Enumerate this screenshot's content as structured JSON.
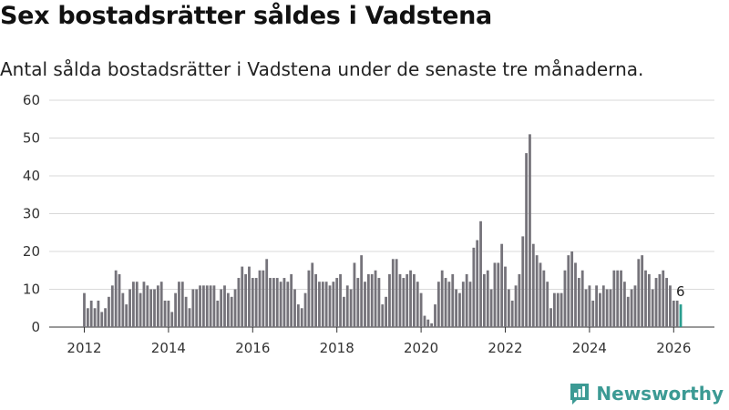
{
  "title": "Sex bostadsrätter såldes i Vadstena",
  "subtitle": "Antal sålda bostadsrätter i Vadstena under de senaste tre månaderna.",
  "brand": {
    "name": "Newsworthy",
    "icon": "newsworthy-logo-icon"
  },
  "colors": {
    "bar": "#75737a",
    "highlight": "#2a9d8f",
    "grid": "#d9d9d9",
    "axis": "#333333",
    "brand": "#3c9a94"
  },
  "chart_data": {
    "type": "bar",
    "title": "Sex bostadsrätter såldes i Vadstena",
    "xlabel": "",
    "ylabel": "",
    "ylim": [
      0,
      60
    ],
    "yticks": [
      0,
      10,
      20,
      30,
      40,
      50,
      60
    ],
    "xticks": [
      "2012",
      "2014",
      "2016",
      "2018",
      "2020",
      "2022",
      "2024",
      "2026"
    ],
    "x_start": "2012-01",
    "frequency": "monthly",
    "highlight_last": true,
    "last_value_label": "6",
    "values": [
      9,
      5,
      7,
      5,
      7,
      4,
      5,
      8,
      11,
      15,
      14,
      9,
      6,
      10,
      12,
      12,
      9,
      12,
      11,
      10,
      10,
      11,
      12,
      7,
      7,
      4,
      9,
      12,
      12,
      8,
      5,
      10,
      10,
      11,
      11,
      11,
      11,
      11,
      7,
      10,
      11,
      9,
      8,
      10,
      13,
      16,
      14,
      16,
      13,
      13,
      15,
      15,
      18,
      13,
      13,
      13,
      12,
      13,
      12,
      14,
      10,
      6,
      5,
      9,
      15,
      17,
      14,
      12,
      12,
      12,
      11,
      12,
      13,
      14,
      8,
      11,
      10,
      17,
      13,
      19,
      12,
      14,
      14,
      15,
      13,
      6,
      8,
      14,
      18,
      18,
      14,
      13,
      14,
      15,
      14,
      12,
      9,
      3,
      2,
      1,
      6,
      12,
      15,
      13,
      12,
      14,
      10,
      9,
      12,
      14,
      12,
      21,
      23,
      28,
      14,
      15,
      10,
      17,
      17,
      22,
      16,
      10,
      7,
      11,
      14,
      24,
      46,
      51,
      22,
      19,
      17,
      15,
      12,
      5,
      9,
      9,
      9,
      15,
      19,
      20,
      17,
      13,
      15,
      10,
      11,
      7,
      11,
      9,
      11,
      10,
      10,
      15,
      15,
      15,
      12,
      8,
      10,
      11,
      18,
      19,
      15,
      14,
      10,
      13,
      14,
      15,
      13,
      11,
      7,
      7,
      6
    ]
  }
}
